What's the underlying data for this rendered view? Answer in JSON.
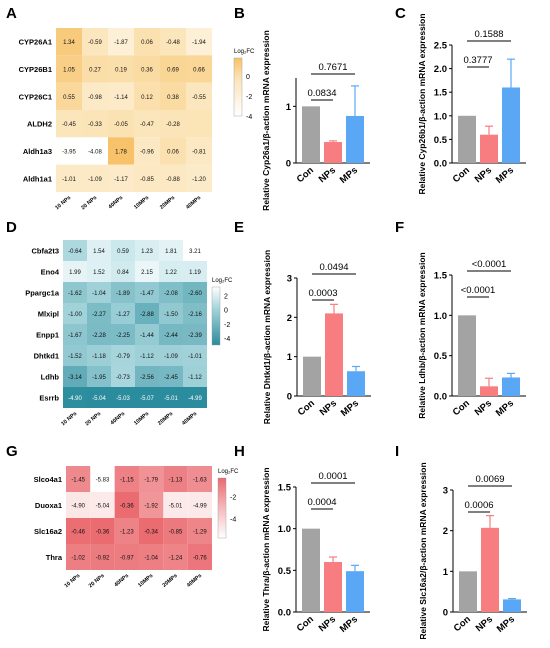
{
  "colors": {
    "con": "#a3a3a3",
    "nps": "#f87d80",
    "mps": "#5aa8f5",
    "heat_orange_high": "#f7c268",
    "heat_teal_low": "#2a8c9c",
    "heat_red_high": "#ea6a6f",
    "error_bar": "#000000"
  },
  "chart_data": [
    {
      "panel": "A",
      "type": "heatmap",
      "rows": [
        "CYP26A1",
        "CYP26B1",
        "CYP26C1",
        "ALDH2",
        "Aldh1a3",
        "Aldh1a1"
      ],
      "columns": [
        "10 NPs",
        "20 NPs",
        "40NPs",
        "10MPs",
        "20MPs",
        "40MPs"
      ],
      "values": [
        [
          1.34,
          -0.59,
          -1.87,
          0.06,
          -0.48,
          -1.94
        ],
        [
          1.05,
          0.27,
          0.19,
          0.36,
          0.69,
          0.66
        ],
        [
          0.55,
          -0.98,
          -1.14,
          0.12,
          0.38,
          -0.55
        ],
        [
          -0.45,
          -0.33,
          -0.05,
          -0.47,
          -0.28,
          null
        ],
        [
          -3.95,
          -4.08,
          1.78,
          -0.96,
          0.06,
          -0.81
        ],
        [
          -1.01,
          -1.09,
          -1.17,
          -0.85,
          -0.88,
          -1.2
        ]
      ],
      "colorbar_label": "Log₂FC",
      "colorbar_ticks": [
        "0",
        "-2",
        "-4"
      ],
      "colorbar_range": [
        -4,
        1.8
      ]
    },
    {
      "panel": "B",
      "type": "bar",
      "categories": [
        "Con",
        "NPs",
        "MPs"
      ],
      "values": [
        1.0,
        0.37,
        0.83
      ],
      "errors": [
        0,
        0.02,
        0.53
      ],
      "ylabel": "Relative Cyp26a1/β-action mRNA expression",
      "ylim": [
        0,
        1.5
      ],
      "yticks": [
        "0",
        "1"
      ],
      "comparisons": [
        {
          "from": 0,
          "to": 1,
          "label": "0.0834"
        },
        {
          "from": 0,
          "to": 2,
          "label": "0.7671"
        }
      ]
    },
    {
      "panel": "C",
      "type": "bar",
      "categories": [
        "Con",
        "NPs",
        "MPs"
      ],
      "values": [
        1.0,
        0.6,
        1.6
      ],
      "errors": [
        0,
        0.18,
        0.6
      ],
      "ylabel": "Relative Cyp26b1/β-action mRNA expression",
      "ylim": [
        0,
        2.5
      ],
      "yticks": [
        "0.0",
        "0.5",
        "1.0",
        "1.5",
        "2.0",
        "2.5"
      ],
      "comparisons": [
        {
          "from": 0,
          "to": 1,
          "label": "0.3777"
        },
        {
          "from": 0,
          "to": 2,
          "label": "0.1588"
        }
      ]
    },
    {
      "panel": "D",
      "type": "heatmap",
      "rows": [
        "Cbfa2t3",
        "Eno4",
        "Ppargc1a",
        "Mlxipl",
        "Enpp1",
        "Dhtkd1",
        "Ldhb",
        "Esrrb"
      ],
      "columns": [
        "10 NPs",
        "20 NPs",
        "40NPs",
        "10MPs",
        "20MPs",
        "40MPs"
      ],
      "values": [
        [
          -0.64,
          1.54,
          0.59,
          1.23,
          1.81,
          3.21
        ],
        [
          1.99,
          1.52,
          0.84,
          2.15,
          1.22,
          1.19
        ],
        [
          -1.62,
          -1.04,
          -1.89,
          -1.47,
          -2.08,
          -2.6
        ],
        [
          -1.0,
          -2.27,
          -1.27,
          -2.88,
          -1.5,
          -2.16
        ],
        [
          -1.67,
          -2.28,
          -2.25,
          -1.44,
          -2.44,
          -2.39
        ],
        [
          -1.52,
          -1.18,
          -0.79,
          -1.12,
          -1.09,
          -1.01
        ],
        [
          -3.14,
          -1.95,
          -0.73,
          -2.56,
          -2.45,
          -1.12
        ],
        [
          -4.9,
          -5.04,
          -5.03,
          -5.07,
          -5.01,
          -4.99
        ]
      ],
      "colorbar_label": "Log₂FC",
      "colorbar_ticks": [
        "2",
        "0",
        "-2",
        "-4"
      ],
      "colorbar_range": [
        -5,
        3.2
      ]
    },
    {
      "panel": "E",
      "type": "bar",
      "categories": [
        "Con",
        "NPs",
        "MPs"
      ],
      "values": [
        1.0,
        2.1,
        0.63
      ],
      "errors": [
        0,
        0.23,
        0.12
      ],
      "ylabel": "Relative Dhtkd1/β-action mRNA expression",
      "ylim": [
        0,
        3
      ],
      "yticks": [
        "0",
        "1",
        "2",
        "3"
      ],
      "comparisons": [
        {
          "from": 0,
          "to": 1,
          "label": "0.0003"
        },
        {
          "from": 0,
          "to": 2,
          "label": "0.0494"
        }
      ]
    },
    {
      "panel": "F",
      "type": "bar",
      "categories": [
        "Con",
        "NPs",
        "MPs"
      ],
      "values": [
        1.0,
        0.12,
        0.23
      ],
      "errors": [
        0,
        0.1,
        0.05
      ],
      "ylabel": "Relative Ldhb/β-action mRNA expression",
      "ylim": [
        0,
        1.5
      ],
      "yticks": [
        "0.0",
        "0.5",
        "1.0",
        "1.5"
      ],
      "comparisons": [
        {
          "from": 0,
          "to": 1,
          "label": "<0.0001"
        },
        {
          "from": 0,
          "to": 2,
          "label": "<0.0001"
        }
      ]
    },
    {
      "panel": "G",
      "type": "heatmap",
      "rows": [
        "Slco4a1",
        "Duoxa1",
        "Slc16a2",
        "Thra"
      ],
      "columns": [
        "10 NPs",
        "20 NPs",
        "40NPs",
        "10MPs",
        "20MPs",
        "40MPs"
      ],
      "values": [
        [
          -1.45,
          -5.83,
          -1.15,
          -1.79,
          -1.13,
          -1.63
        ],
        [
          -4.9,
          -5.04,
          -0.36,
          -1.92,
          -5.01,
          -4.99
        ],
        [
          -0.46,
          -0.36,
          -1.23,
          -0.34,
          -0.85,
          -1.29
        ],
        [
          -1.02,
          -0.92,
          -0.97,
          -1.04,
          -1.24,
          -0.76
        ]
      ],
      "colorbar_label": "Log₂FC",
      "colorbar_ticks": [
        "-2",
        "-4"
      ],
      "colorbar_range": [
        -5.8,
        -0.3
      ]
    },
    {
      "panel": "H",
      "type": "bar",
      "categories": [
        "Con",
        "NPs",
        "MPs"
      ],
      "values": [
        1.0,
        0.6,
        0.49
      ],
      "errors": [
        0,
        0.06,
        0.07
      ],
      "ylabel": "Relative Thra/β-action mRNA expression",
      "ylim": [
        0,
        1.5
      ],
      "yticks": [
        "0.0",
        "0.5",
        "1.0",
        "1.5"
      ],
      "comparisons": [
        {
          "from": 0,
          "to": 1,
          "label": "0.0004"
        },
        {
          "from": 0,
          "to": 2,
          "label": "0.0001"
        }
      ]
    },
    {
      "panel": "I",
      "type": "bar",
      "categories": [
        "Con",
        "NPs",
        "MPs"
      ],
      "values": [
        1.0,
        2.07,
        0.31
      ],
      "errors": [
        0,
        0.3,
        0.02
      ],
      "ylabel": "Relative Slc16a2/β-action mRNA expression",
      "ylim": [
        0,
        3
      ],
      "yticks": [
        "0",
        "1",
        "2",
        "3"
      ],
      "comparisons": [
        {
          "from": 0,
          "to": 1,
          "label": "0.0006"
        },
        {
          "from": 0,
          "to": 2,
          "label": "0.0069"
        }
      ]
    }
  ]
}
